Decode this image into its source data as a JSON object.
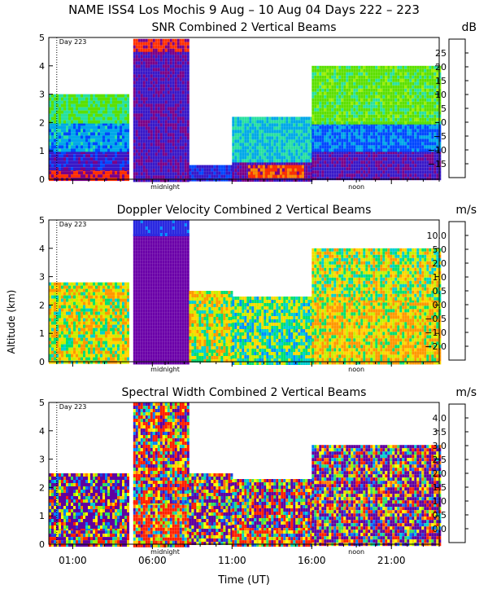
{
  "header": {
    "title": "NAME ISS4 Los Mochis   9 Aug – 10 Aug 04 Days 222 – 223"
  },
  "xaxis": {
    "label": "Time (UT)",
    "ticks": [
      "01:00",
      "06:00",
      "11:00",
      "16:00",
      "21:00"
    ],
    "tick_hours": [
      1,
      6,
      11,
      16,
      21
    ],
    "range_hours": [
      -0.5,
      24
    ]
  },
  "yaxis": {
    "label": "Altitude (km)",
    "ticks": [
      "0",
      "1",
      "2",
      "3",
      "4",
      "5"
    ]
  },
  "markers": {
    "midnight": "midnight",
    "noon": "noon",
    "day": "Day 223"
  },
  "panels": [
    {
      "title": "SNR Combined 2 Vertical Beams",
      "unit": "dB",
      "colorbar_labels": [
        "25",
        "20",
        "15",
        "10",
        "5",
        "0",
        "−5",
        "−10",
        "−15"
      ],
      "colorbar_colors": [
        "#ffd400",
        "#ff8c00",
        "#ff3000",
        "#7a0088",
        "#3818c8",
        "#0048ff",
        "#00a8e8",
        "#28e0a0",
        "#5ce000",
        "#9cf000"
      ]
    },
    {
      "title": "Doppler Velocity Combined 2 Vertical Beams",
      "unit": "m/s",
      "colorbar_labels": [
        "10.0",
        "5.0",
        "2.0",
        "1.0",
        "0.5",
        "0.0",
        "−0.5",
        "−1.0",
        "−2.0"
      ],
      "colorbar_colors": [
        "#2a0040",
        "#6a00a8",
        "#2a28e0",
        "#0090ff",
        "#00d0d0",
        "#00e070",
        "#c8f000",
        "#ffd800",
        "#ff9800",
        "#ff2010"
      ]
    },
    {
      "title": "Spectral Width Combined 2 Vertical Beams",
      "unit": "m/s",
      "colorbar_labels": [
        "4.0",
        "3.5",
        "3.0",
        "2.5",
        "2.0",
        "1.5",
        "1.0",
        "0.5",
        "0.0"
      ],
      "colorbar_colors": [
        "#ff2000",
        "#ff7800",
        "#ffd000",
        "#ffff00",
        "#a0f000",
        "#30e060",
        "#00d0d0",
        "#0080ff",
        "#2040e0",
        "#6000a0"
      ]
    }
  ],
  "chart_data": [
    {
      "type": "heatmap",
      "title": "SNR Combined 2 Vertical Beams",
      "xlabel": "Time (UT)",
      "ylabel": "Altitude (km)",
      "xlim_hours": [
        -0.5,
        24
      ],
      "ylim": [
        0,
        5
      ],
      "colorbar": {
        "unit": "dB",
        "ticks": [
          -15,
          -10,
          -5,
          0,
          5,
          10,
          15,
          20,
          25
        ]
      },
      "regions": [
        {
          "t": [
            -0.5,
            4.5
          ],
          "z": [
            0,
            0.4
          ],
          "value": 15
        },
        {
          "t": [
            -0.5,
            4.5
          ],
          "z": [
            0.4,
            1.0
          ],
          "value": 7
        },
        {
          "t": [
            -0.5,
            4.5
          ],
          "z": [
            1.0,
            2.0
          ],
          "value": -2
        },
        {
          "t": [
            -0.5,
            4.5
          ],
          "z": [
            2.0,
            3.0
          ],
          "value": -10
        },
        {
          "t": [
            4.8,
            8.3
          ],
          "z": [
            0,
            4.5
          ],
          "value": 9
        },
        {
          "t": [
            4.8,
            8.3
          ],
          "z": [
            4.5,
            4.95
          ],
          "value": 16
        },
        {
          "t": [
            8.3,
            11.0
          ],
          "z": [
            0,
            0.5
          ],
          "value": 6
        },
        {
          "t": [
            11.0,
            16.0
          ],
          "z": [
            0,
            0.6
          ],
          "value": 10
        },
        {
          "t": [
            11.0,
            16.0
          ],
          "z": [
            0.6,
            2.2
          ],
          "value": -5
        },
        {
          "t": [
            12.0,
            15.5
          ],
          "z": [
            0.05,
            0.5
          ],
          "value": 18
        },
        {
          "t": [
            16.0,
            24.0
          ],
          "z": [
            0,
            1.0
          ],
          "value": 9
        },
        {
          "t": [
            16.0,
            24.0
          ],
          "z": [
            1.0,
            2.0
          ],
          "value": 1
        },
        {
          "t": [
            16.0,
            24.0
          ],
          "z": [
            2.0,
            4.0
          ],
          "value": -12
        }
      ]
    },
    {
      "type": "heatmap",
      "title": "Doppler Velocity Combined 2 Vertical Beams",
      "xlabel": "Time (UT)",
      "ylabel": "Altitude (km)",
      "xlim_hours": [
        -0.5,
        24
      ],
      "ylim": [
        0,
        5
      ],
      "colorbar": {
        "unit": "m/s",
        "ticks": [
          -2.0,
          -1.0,
          -0.5,
          0.0,
          0.5,
          1.0,
          2.0,
          5.0,
          10.0
        ]
      },
      "regions": [
        {
          "t": [
            -0.5,
            4.5
          ],
          "z": [
            0,
            2.8
          ],
          "value": -0.5
        },
        {
          "t": [
            4.8,
            8.3
          ],
          "z": [
            0,
            4.5
          ],
          "value": 8.0
        },
        {
          "t": [
            4.8,
            8.3
          ],
          "z": [
            4.5,
            5.0
          ],
          "value": 3.0
        },
        {
          "t": [
            8.3,
            11.0
          ],
          "z": [
            0,
            2.5
          ],
          "value": -0.3
        },
        {
          "t": [
            11.0,
            16.0
          ],
          "z": [
            0,
            2.3
          ],
          "value": 0.2
        },
        {
          "t": [
            16.0,
            24.0
          ],
          "z": [
            0,
            2.2
          ],
          "value": -0.8
        },
        {
          "t": [
            16.0,
            24.0
          ],
          "z": [
            2.2,
            4.0
          ],
          "value": -0.3
        }
      ]
    },
    {
      "type": "heatmap",
      "title": "Spectral Width Combined 2 Vertical Beams",
      "xlabel": "Time (UT)",
      "ylabel": "Altitude (km)",
      "xlim_hours": [
        -0.5,
        24
      ],
      "ylim": [
        0,
        5
      ],
      "colorbar": {
        "unit": "m/s",
        "ticks": [
          0.0,
          0.5,
          1.0,
          1.5,
          2.0,
          2.5,
          3.0,
          3.5,
          4.0
        ]
      },
      "regions": [
        {
          "t": [
            -0.5,
            4.5
          ],
          "z": [
            0,
            0.6
          ],
          "value": 1.8
        },
        {
          "t": [
            -0.5,
            4.5
          ],
          "z": [
            0.6,
            2.5
          ],
          "value": 0.7
        },
        {
          "t": [
            4.8,
            8.3
          ],
          "z": [
            0,
            1.5
          ],
          "value": 3.8
        },
        {
          "t": [
            4.8,
            8.3
          ],
          "z": [
            1.5,
            5.0
          ],
          "value": 2.7
        },
        {
          "t": [
            8.3,
            11.0
          ],
          "z": [
            0,
            2.5
          ],
          "value": 1.2
        },
        {
          "t": [
            11.0,
            16.0
          ],
          "z": [
            0,
            0.6
          ],
          "value": 3.2
        },
        {
          "t": [
            11.0,
            16.0
          ],
          "z": [
            0.6,
            2.3
          ],
          "value": 1.7
        },
        {
          "t": [
            16.0,
            24.0
          ],
          "z": [
            0,
            3.5
          ],
          "value": 1.1
        }
      ]
    }
  ]
}
